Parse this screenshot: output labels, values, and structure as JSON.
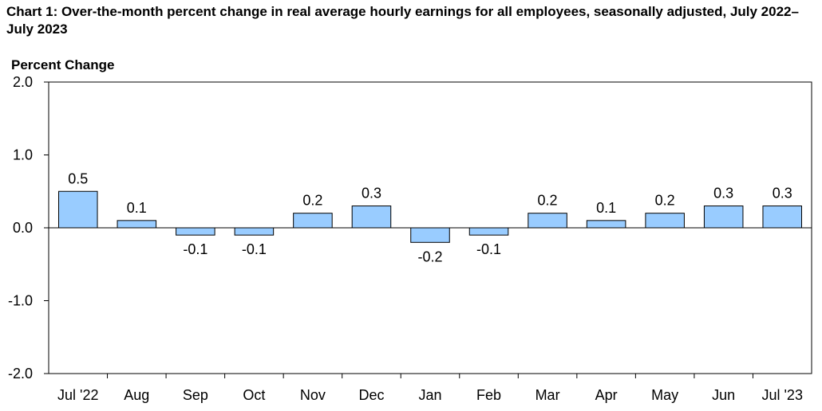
{
  "chart_data": {
    "type": "bar",
    "title": "Chart 1: Over-the-month percent change in real average hourly earnings for all employees, seasonally adjusted, July 2022–July 2023",
    "ylabel": "Percent Change",
    "xlabel": "",
    "categories": [
      "Jul '22",
      "Aug",
      "Sep",
      "Oct",
      "Nov",
      "Dec",
      "Jan",
      "Feb",
      "Mar",
      "Apr",
      "May",
      "Jun",
      "Jul '23"
    ],
    "values": [
      0.5,
      0.1,
      -0.1,
      -0.1,
      0.2,
      0.3,
      -0.2,
      -0.1,
      0.2,
      0.1,
      0.2,
      0.3,
      0.3
    ],
    "data_labels": [
      "0.5",
      "0.1",
      "-0.1",
      "-0.1",
      "0.2",
      "0.3",
      "-0.2",
      "-0.1",
      "0.2",
      "0.1",
      "0.2",
      "0.3",
      "0.3"
    ],
    "ylim": [
      -2.0,
      2.0
    ],
    "yticks": [
      "2.0",
      "1.0",
      "0.0",
      "-1.0",
      "-2.0"
    ],
    "ytick_values": [
      2.0,
      1.0,
      0.0,
      -1.0,
      -2.0
    ],
    "grid": false,
    "legend": "none",
    "bar_color": "#99ccff",
    "bar_edge_color": "#000000"
  }
}
